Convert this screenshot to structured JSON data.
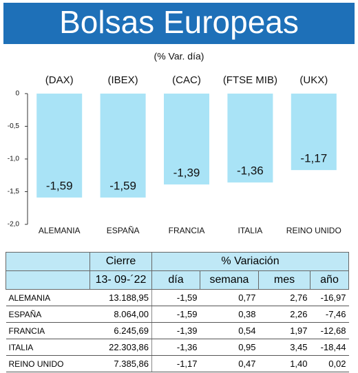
{
  "chart_data": {
    "type": "bar",
    "title": "Bolsas Europeas",
    "subtitle": "(% Var. día)",
    "categories": [
      "ALEMANIA",
      "ESPAÑA",
      "FRANCIA",
      "ITALIA",
      "REINO UNIDO"
    ],
    "tickers": [
      "(DAX)",
      "(IBEX)",
      "(CAC)",
      "(FTSE MIB)",
      "(UKX)"
    ],
    "values": [
      -1.59,
      -1.59,
      -1.39,
      -1.36,
      -1.17
    ],
    "value_labels": [
      "-1,59",
      "-1,59",
      "-1,39",
      "-1,36",
      "-1,17"
    ],
    "color": "#a9e3f6",
    "ylim": [
      0,
      -2.0
    ],
    "yticks": [
      0,
      {
        "value": -0.5,
        "label": "-0,5"
      },
      {
        "value": -1.0,
        "label": "-1,0"
      },
      {
        "value": -1.5,
        "label": "-1,5"
      },
      {
        "value": -2.0,
        "label": "-2,0"
      }
    ],
    "grid": false
  },
  "table": {
    "header": [
      "Cierre",
      "% Variación"
    ],
    "subheader": [
      "13- 09-´22",
      "día",
      "semana",
      "mes",
      "año"
    ],
    "rows": [
      [
        "ALEMANIA",
        "13.188,95",
        "-1,59",
        "0,77",
        "2,76",
        "-16,97"
      ],
      [
        "ESPAÑA",
        "8.064,00",
        "-1,59",
        "0,38",
        "2,26",
        "-7,46"
      ],
      [
        "FRANCIA",
        "6.245,69",
        "-1,39",
        "0,54",
        "1,97",
        "-12,68"
      ],
      [
        "ITALIA",
        "22.303,86",
        "-1,36",
        "0,95",
        "3,45",
        "-18,44"
      ],
      [
        "REINO UNIDO",
        "7.385,86",
        "-1,17",
        "0,47",
        "1,40",
        "0,02"
      ]
    ]
  }
}
